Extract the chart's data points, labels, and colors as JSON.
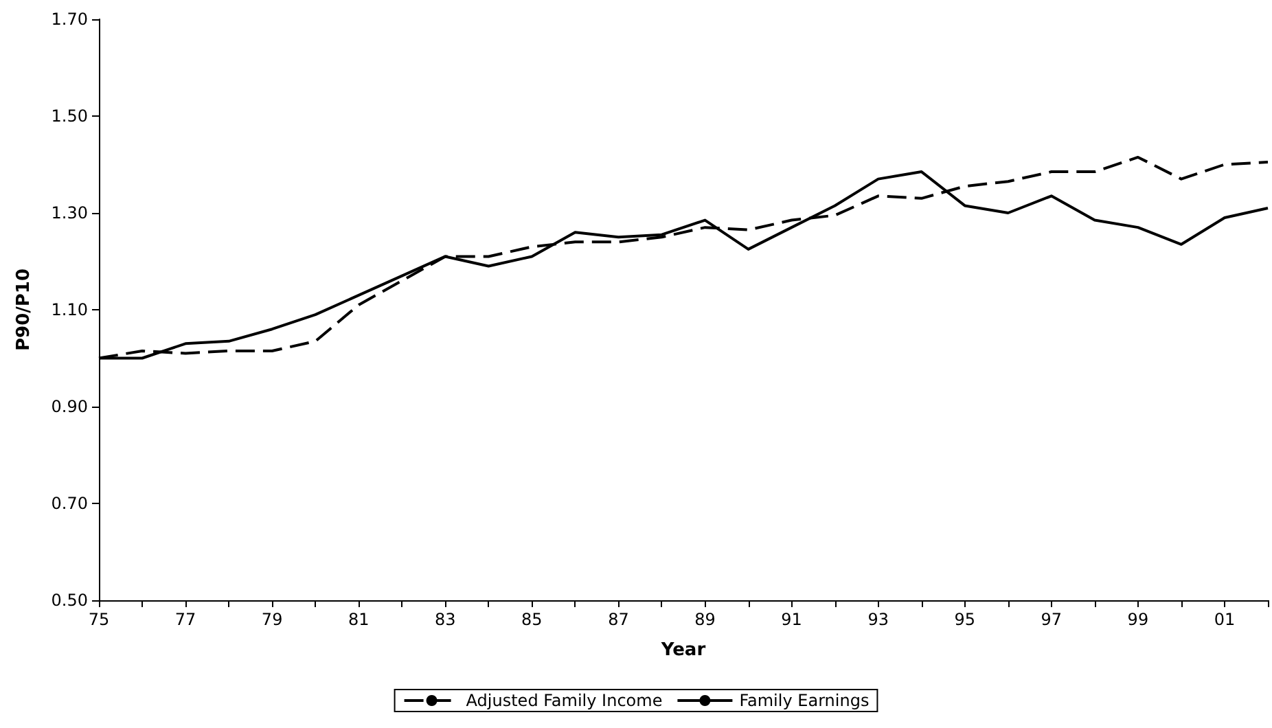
{
  "chart_data": {
    "type": "line",
    "xlabel": "Year",
    "ylabel": "P90/P10",
    "categories": [
      "75",
      null,
      "77",
      null,
      "79",
      null,
      "81",
      null,
      "83",
      null,
      "85",
      null,
      "87",
      null,
      "89",
      null,
      "91",
      null,
      "93",
      null,
      "95",
      null,
      "97",
      null,
      "99",
      null,
      "01",
      null
    ],
    "series": [
      {
        "name": "Adjusted Family Income",
        "color": "#000000",
        "line_style": "dashed",
        "values": [
          1.0,
          1.015,
          1.01,
          1.015,
          1.015,
          1.035,
          1.11,
          1.16,
          1.21,
          1.21,
          1.23,
          1.24,
          1.24,
          1.25,
          1.27,
          1.265,
          1.285,
          1.295,
          1.335,
          1.33,
          1.355,
          1.365,
          1.385,
          1.385,
          1.415,
          1.37,
          1.4,
          1.405
        ]
      },
      {
        "name": "Family Earnings",
        "color": "#000000",
        "line_style": "solid",
        "values": [
          1.0,
          1.0,
          1.03,
          1.035,
          1.06,
          1.09,
          1.13,
          1.17,
          1.21,
          1.19,
          1.21,
          1.26,
          1.25,
          1.255,
          1.285,
          1.225,
          1.27,
          1.315,
          1.37,
          1.385,
          1.315,
          1.3,
          1.335,
          1.285,
          1.27,
          1.235,
          1.29,
          1.31
        ]
      }
    ],
    "ylim": [
      0.5,
      1.7
    ],
    "yticks": [
      {
        "value": 0.5,
        "label": "0.50"
      },
      {
        "value": 0.7,
        "label": "0.70"
      },
      {
        "value": 0.9,
        "label": "0.90"
      },
      {
        "value": 1.1,
        "label": "1.10"
      },
      {
        "value": 1.3,
        "label": "1.30"
      },
      {
        "value": 1.5,
        "label": "1.50"
      },
      {
        "value": 1.7,
        "label": "1.70"
      }
    ],
    "grid": false,
    "legend": "bottom",
    "marker": "none"
  }
}
